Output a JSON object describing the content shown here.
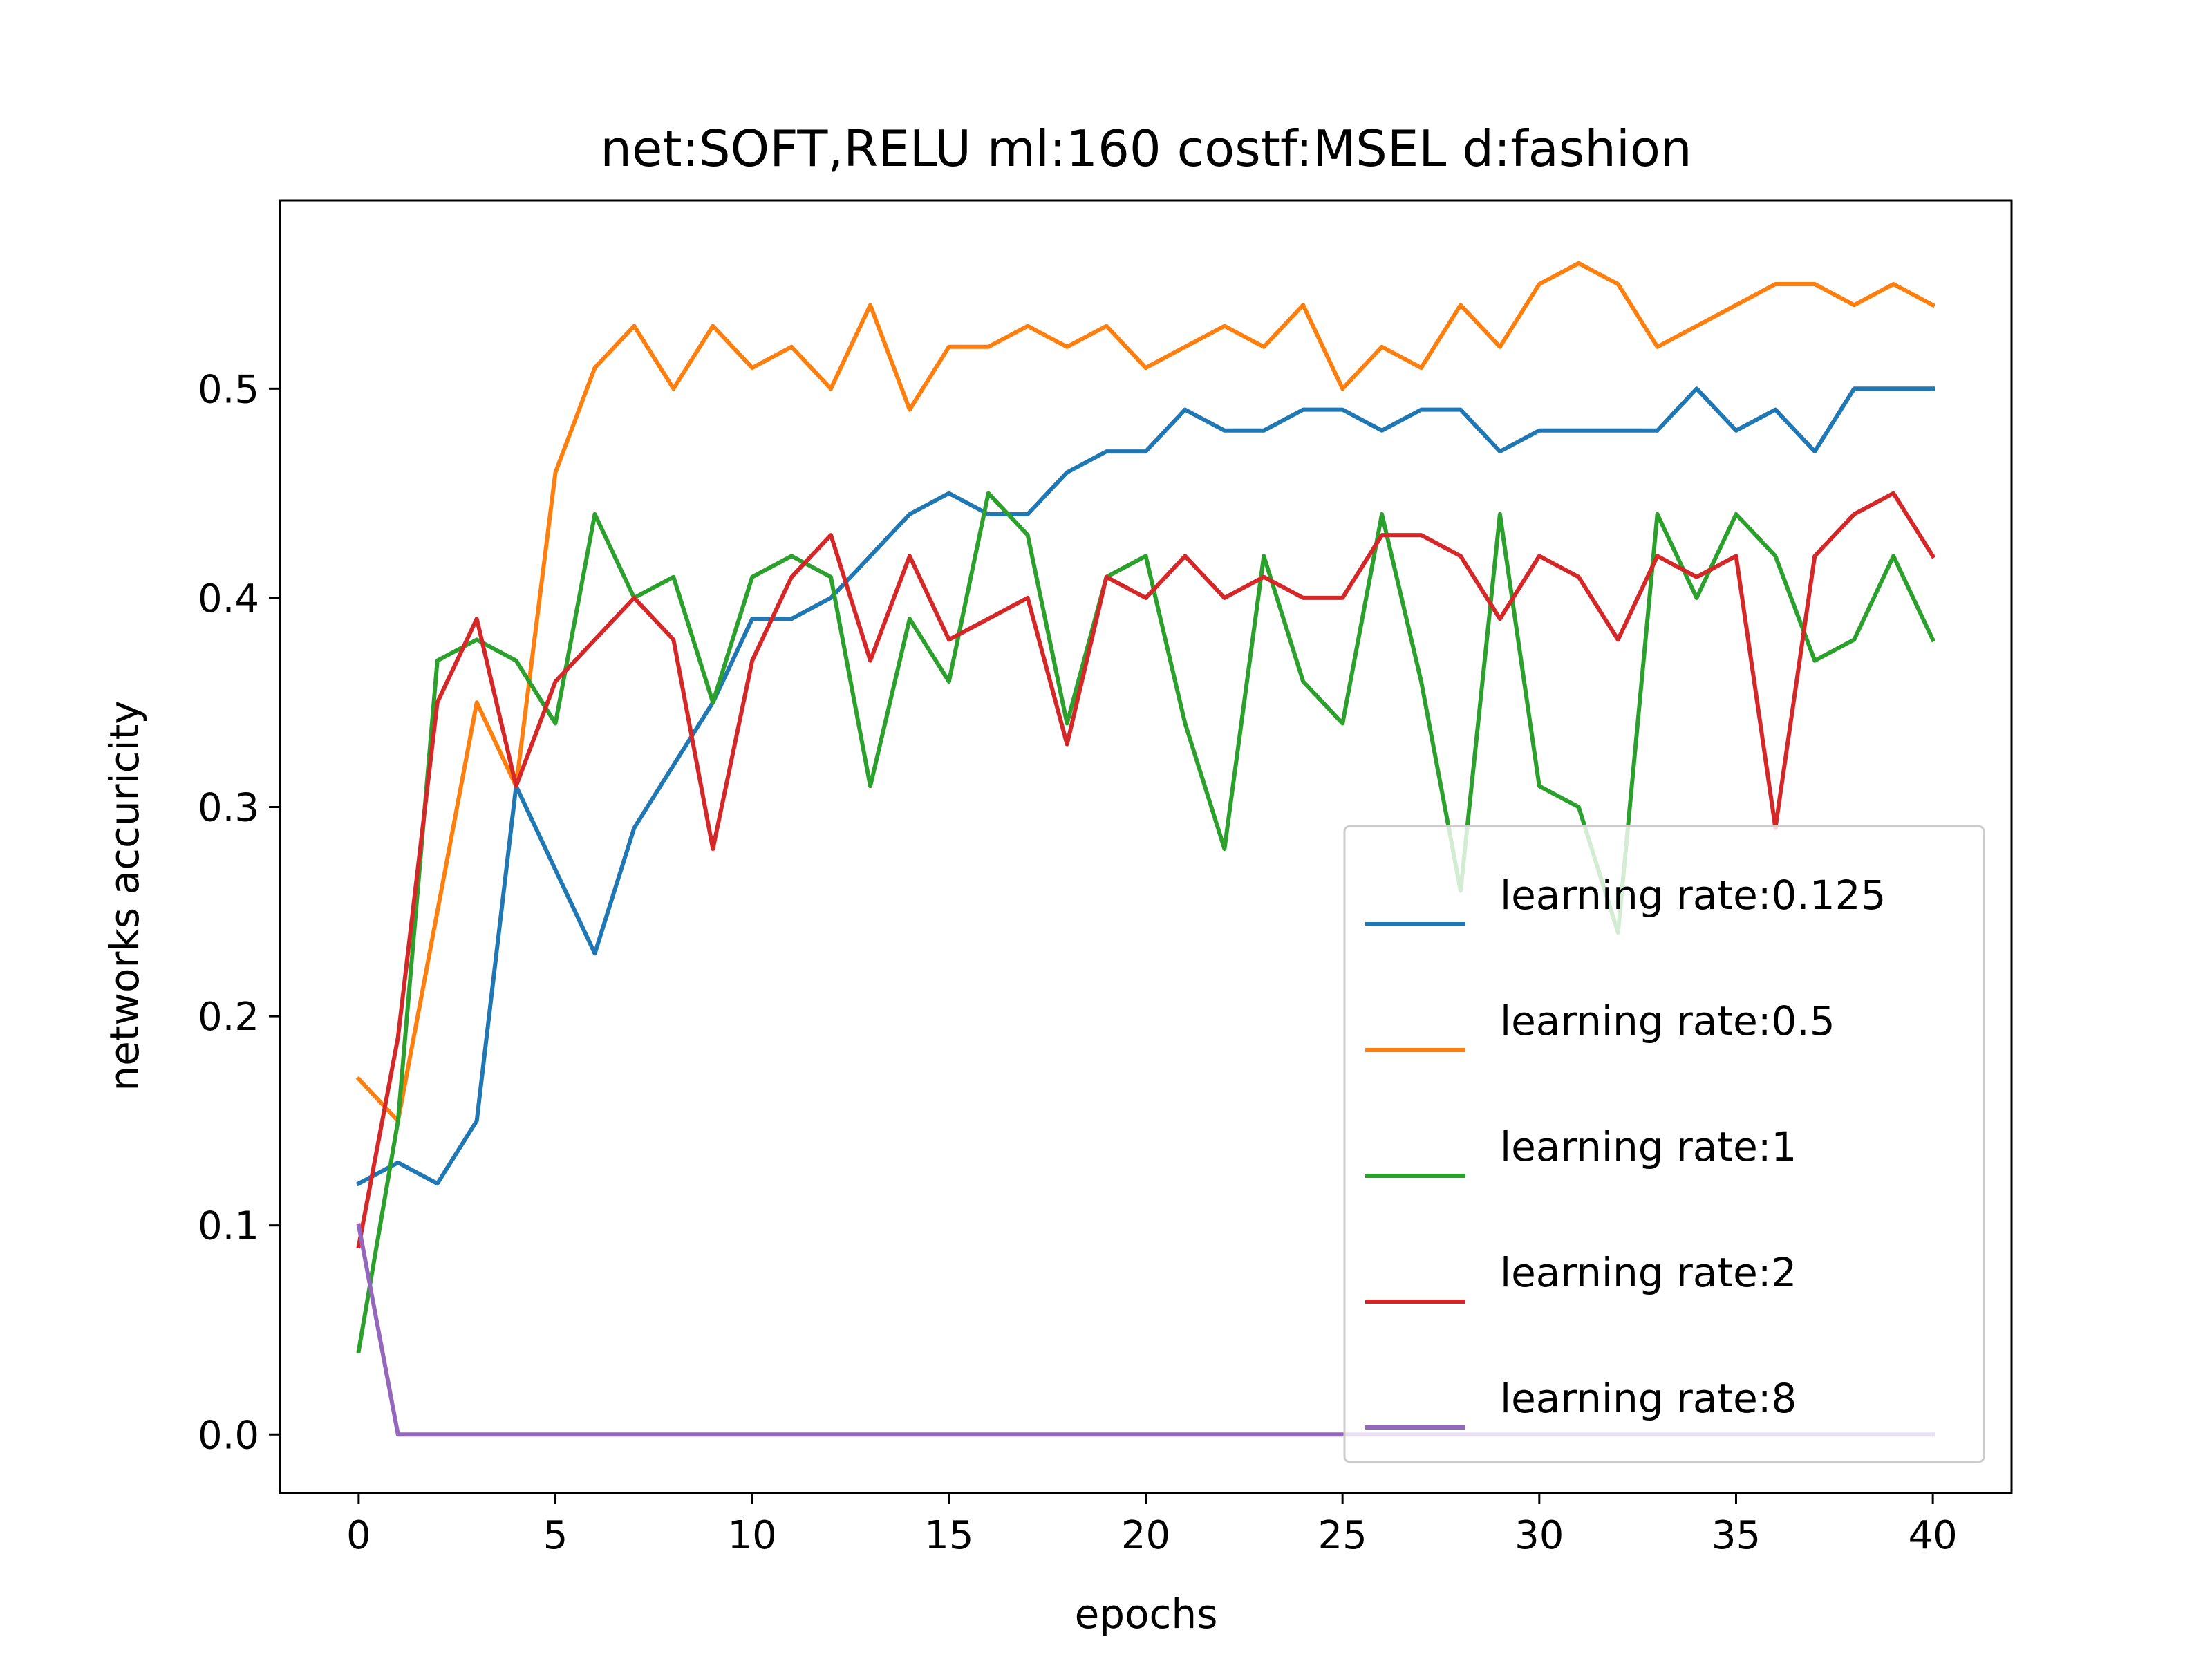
{
  "chart_data": {
    "type": "line",
    "title": "net:SOFT,RELU ml:160 costf:MSEL d:fashion",
    "xlabel": "epochs",
    "ylabel": "networks accuricity",
    "xlim": [
      -2,
      42
    ],
    "ylim": [
      -0.028,
      0.59
    ],
    "xticks": [
      0,
      5,
      10,
      15,
      20,
      25,
      30,
      35,
      40
    ],
    "xtick_labels": [
      "0",
      "5",
      "10",
      "15",
      "20",
      "25",
      "30",
      "35",
      "40"
    ],
    "yticks": [
      0.0,
      0.1,
      0.2,
      0.3,
      0.4,
      0.5
    ],
    "ytick_labels": [
      "0.0",
      "0.1",
      "0.2",
      "0.3",
      "0.4",
      "0.5"
    ],
    "grid": false,
    "legend_position": "bottom-right",
    "x": [
      0,
      1,
      2,
      3,
      4,
      5,
      6,
      7,
      8,
      9,
      10,
      11,
      12,
      13,
      14,
      15,
      16,
      17,
      18,
      19,
      20,
      21,
      22,
      23,
      24,
      25,
      26,
      27,
      28,
      29,
      30,
      31,
      32,
      33,
      34,
      35,
      36,
      37,
      38,
      39,
      40
    ],
    "series": [
      {
        "name": "learning rate:0.125",
        "color": "#1f77b4",
        "values": [
          0.12,
          0.13,
          0.12,
          0.15,
          0.31,
          0.27,
          0.23,
          0.29,
          0.32,
          0.35,
          0.39,
          0.39,
          0.4,
          0.42,
          0.44,
          0.45,
          0.44,
          0.44,
          0.46,
          0.47,
          0.47,
          0.49,
          0.48,
          0.48,
          0.49,
          0.49,
          0.48,
          0.49,
          0.49,
          0.47,
          0.48,
          0.48,
          0.48,
          0.48,
          0.5,
          0.48,
          0.49,
          0.47,
          0.5,
          0.5,
          0.5
        ]
      },
      {
        "name": "learning rate:0.5",
        "color": "#ff7f0e",
        "values": [
          0.17,
          0.15,
          0.25,
          0.35,
          0.31,
          0.46,
          0.51,
          0.53,
          0.5,
          0.53,
          0.51,
          0.52,
          0.5,
          0.54,
          0.49,
          0.52,
          0.52,
          0.53,
          0.52,
          0.53,
          0.51,
          0.52,
          0.53,
          0.52,
          0.54,
          0.5,
          0.52,
          0.51,
          0.54,
          0.52,
          0.55,
          0.56,
          0.55,
          0.52,
          0.53,
          0.54,
          0.55,
          0.55,
          0.54,
          0.55,
          0.54
        ]
      },
      {
        "name": "learning rate:1",
        "color": "#2ca02c",
        "values": [
          0.04,
          0.15,
          0.37,
          0.38,
          0.37,
          0.34,
          0.44,
          0.4,
          0.41,
          0.35,
          0.41,
          0.42,
          0.41,
          0.31,
          0.39,
          0.36,
          0.45,
          0.43,
          0.34,
          0.41,
          0.42,
          0.34,
          0.28,
          0.42,
          0.36,
          0.34,
          0.44,
          0.36,
          0.26,
          0.44,
          0.31,
          0.3,
          0.24,
          0.44,
          0.4,
          0.44,
          0.42,
          0.37,
          0.38,
          0.42,
          0.38
        ]
      },
      {
        "name": "learning rate:2",
        "color": "#d62728",
        "values": [
          0.09,
          0.19,
          0.35,
          0.39,
          0.31,
          0.36,
          0.38,
          0.4,
          0.38,
          0.28,
          0.37,
          0.41,
          0.43,
          0.37,
          0.42,
          0.38,
          0.39,
          0.4,
          0.33,
          0.41,
          0.4,
          0.42,
          0.4,
          0.41,
          0.4,
          0.4,
          0.43,
          0.43,
          0.42,
          0.39,
          0.42,
          0.41,
          0.38,
          0.42,
          0.41,
          0.42,
          0.29,
          0.42,
          0.44,
          0.45,
          0.42
        ]
      },
      {
        "name": "learning rate:8",
        "color": "#9467bd",
        "values": [
          0.1,
          0.0,
          0.0,
          0.0,
          0.0,
          0.0,
          0.0,
          0.0,
          0.0,
          0.0,
          0.0,
          0.0,
          0.0,
          0.0,
          0.0,
          0.0,
          0.0,
          0.0,
          0.0,
          0.0,
          0.0,
          0.0,
          0.0,
          0.0,
          0.0,
          0.0,
          0.0,
          0.0,
          0.0,
          0.0,
          0.0,
          0.0,
          0.0,
          0.0,
          0.0,
          0.0,
          0.0,
          0.0,
          0.0,
          0.0,
          0.0
        ]
      }
    ]
  }
}
